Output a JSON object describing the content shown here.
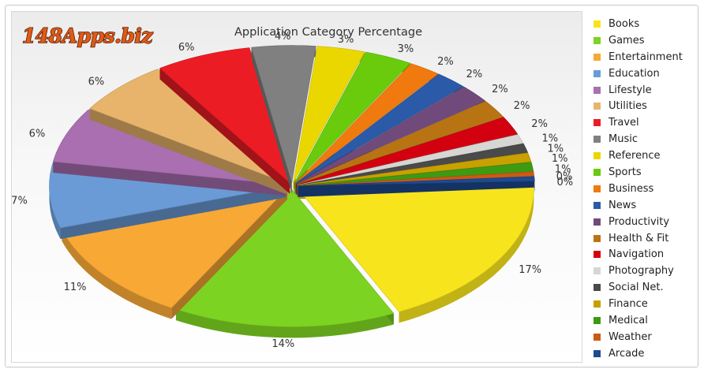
{
  "logo": "148Apps.biz",
  "chart_data": {
    "type": "pie",
    "title": "Application Category Percentage",
    "legend_position": "right",
    "slices": [
      {
        "label": "Books",
        "value": 17,
        "value_label": "17%",
        "color": "#f7e41c"
      },
      {
        "label": "Games",
        "value": 14,
        "value_label": "14%",
        "color": "#7dd321"
      },
      {
        "label": "Entertainment",
        "value": 11,
        "value_label": "11%",
        "color": "#f8a835"
      },
      {
        "label": "Education",
        "value": 7,
        "value_label": "7%",
        "color": "#6a9bd6"
      },
      {
        "label": "Lifestyle",
        "value": 6,
        "value_label": "6%",
        "color": "#a96fb0"
      },
      {
        "label": "Utilities",
        "value": 6,
        "value_label": "6%",
        "color": "#e8b46b"
      },
      {
        "label": "Travel",
        "value": 6,
        "value_label": "6%",
        "color": "#ec1c24"
      },
      {
        "label": "Music",
        "value": 4,
        "value_label": "4%",
        "color": "#808080"
      },
      {
        "label": "Reference",
        "value": 3,
        "value_label": "3%",
        "color": "#ebd700"
      },
      {
        "label": "Sports",
        "value": 3,
        "value_label": "3%",
        "color": "#6acb0c"
      },
      {
        "label": "Business",
        "value": 2,
        "value_label": "2%",
        "color": "#f07a0e"
      },
      {
        "label": "News",
        "value": 2,
        "value_label": "2%",
        "color": "#2a5aa8"
      },
      {
        "label": "Productivity",
        "value": 2,
        "value_label": "2%",
        "color": "#714a7c"
      },
      {
        "label": "Health & Fit",
        "value": 2,
        "value_label": "2%",
        "color": "#b87413"
      },
      {
        "label": "Navigation",
        "value": 2,
        "value_label": "2%",
        "color": "#d30010"
      },
      {
        "label": "Photography",
        "value": 1,
        "value_label": "1%",
        "color": "#d6d6d2"
      },
      {
        "label": "Social Net.",
        "value": 1,
        "value_label": "1%",
        "color": "#4a4a4a"
      },
      {
        "label": "Finance",
        "value": 1,
        "value_label": "1%",
        "color": "#c8a000"
      },
      {
        "label": "Medical",
        "value": 1,
        "value_label": "1%",
        "color": "#3e9a12"
      },
      {
        "label": "Weather",
        "value": 0,
        "value_label": "0%",
        "color": "#cc5a12"
      },
      {
        "label": "Arcade",
        "value": 0,
        "value_label": "0%",
        "color": "#1e4a90"
      }
    ]
  }
}
